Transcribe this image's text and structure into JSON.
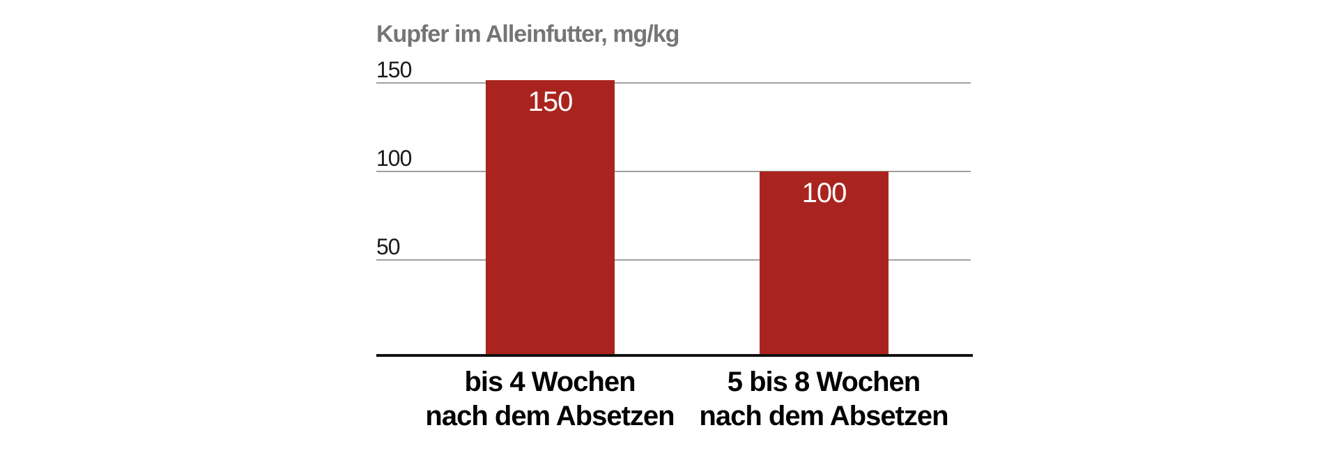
{
  "chart_data": {
    "type": "bar",
    "title": "Kupfer im Alleinfutter, mg/kg",
    "categories": [
      "bis 4 Wochen\nnach dem Absetzen",
      "5 bis 8 Wochen\nnach dem Absetzen"
    ],
    "values": [
      150,
      100
    ],
    "value_labels": [
      "150",
      "100"
    ],
    "yticks": [
      150,
      100,
      50
    ],
    "ylim": [
      0,
      150
    ],
    "xlabel": "",
    "ylabel": "Kupfer im Alleinfutter, mg/kg",
    "grid": true,
    "legend_position": "none",
    "colors": {
      "bar": "#aa241f",
      "gridline": "#a0a0a0",
      "axis_line": "#111111",
      "title": "#757575",
      "tick_label": "#1a1a1a",
      "category_label": "#000000",
      "value_label": "#ffffff",
      "background": "#ffffff"
    }
  }
}
